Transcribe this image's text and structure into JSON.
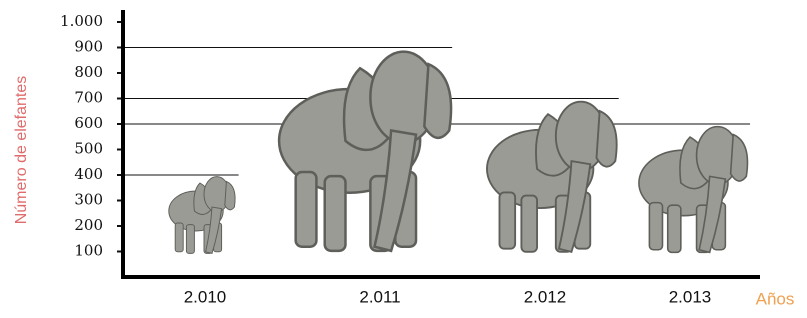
{
  "chart_data": {
    "type": "pictograph",
    "x_label": "Años",
    "y_label": "Número de elefantes",
    "categories": [
      "2.010",
      "2.011",
      "2.012",
      "2.013"
    ],
    "values": [
      400,
      900,
      700,
      600
    ],
    "ylim": [
      0,
      1000
    ],
    "yticks": [
      100,
      200,
      300,
      400,
      500,
      600,
      700,
      800,
      900,
      {
        "value": 1000,
        "label": "1.000"
      }
    ],
    "color": "#9b9b95"
  }
}
